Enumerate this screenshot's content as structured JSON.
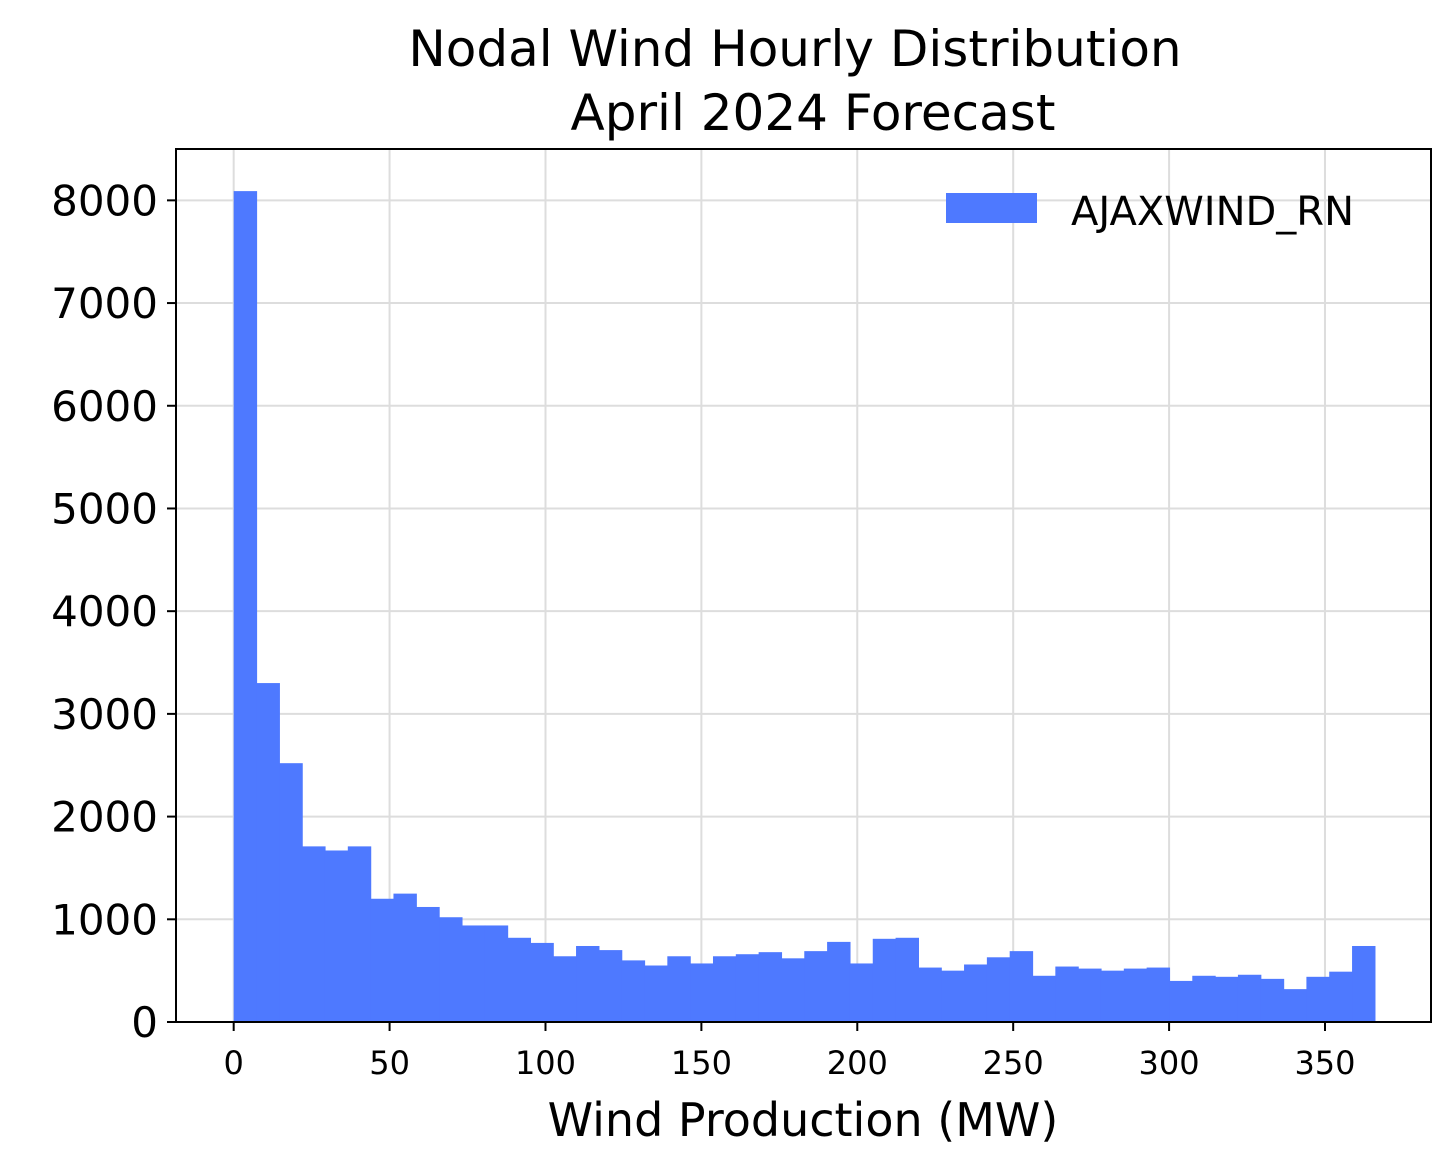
{
  "chart_data": {
    "type": "bar",
    "title_lines": [
      "Nodal Wind Hourly Distribution",
      "April 2024 Forecast"
    ],
    "xlabel": "Wind Production (MW)",
    "ylabel": "",
    "xlim": [
      -18.5,
      384
    ],
    "ylim": [
      0,
      8500
    ],
    "xticks": [
      0,
      50,
      100,
      150,
      200,
      250,
      300,
      350
    ],
    "yticks": [
      0,
      1000,
      2000,
      3000,
      4000,
      5000,
      6000,
      7000,
      8000
    ],
    "grid": true,
    "legend_position": "top-right",
    "bin_start": 0,
    "bin_width": 7.32,
    "series": [
      {
        "name": "AJAXWIND_RN",
        "color": "#4e79ff",
        "values": [
          8090,
          3300,
          2520,
          1710,
          1670,
          1710,
          1200,
          1250,
          1120,
          1020,
          940,
          940,
          820,
          770,
          640,
          740,
          700,
          600,
          550,
          640,
          570,
          640,
          660,
          680,
          620,
          690,
          780,
          570,
          810,
          820,
          530,
          500,
          560,
          630,
          690,
          450,
          540,
          520,
          500,
          520,
          530,
          400,
          450,
          440,
          460,
          420,
          320,
          440,
          490,
          740
        ]
      }
    ]
  }
}
